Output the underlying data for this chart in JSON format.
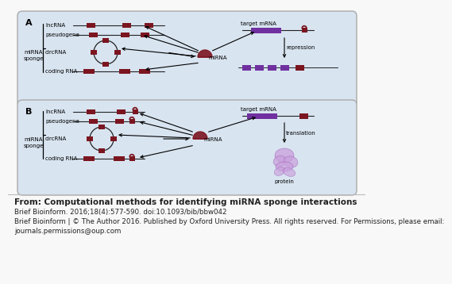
{
  "figure_bg": "#f8f8f8",
  "panel_bg": "#d8e4f0",
  "dark_red": "#7b1520",
  "purple": "#7030a0",
  "caption_lines": [
    "From: Computational methods for identifying miRNA sponge interactions",
    "Brief Bioinform. 2016;18(4):577-590. doi:10.1093/bib/bbw042",
    "Brief Bioinform | © The Author 2016. Published by Oxford University Press. All rights reserved. For Permissions, please email:",
    "journals.permissions@oup.com"
  ],
  "labels_left_A": [
    "lncRNA",
    "pseudogene",
    "circRNA",
    "coding RNA"
  ],
  "labels_left_B": [
    "lncRNA",
    "pseudogene",
    "circRNA",
    "coding RNA"
  ],
  "miRNA_label": "miRNA",
  "target_mRNA_label": "target mRNA",
  "repression_label": "repression",
  "translation_label": "translation",
  "protein_label": "protein",
  "mirna_sponge": [
    "miRNA",
    "sponge"
  ]
}
